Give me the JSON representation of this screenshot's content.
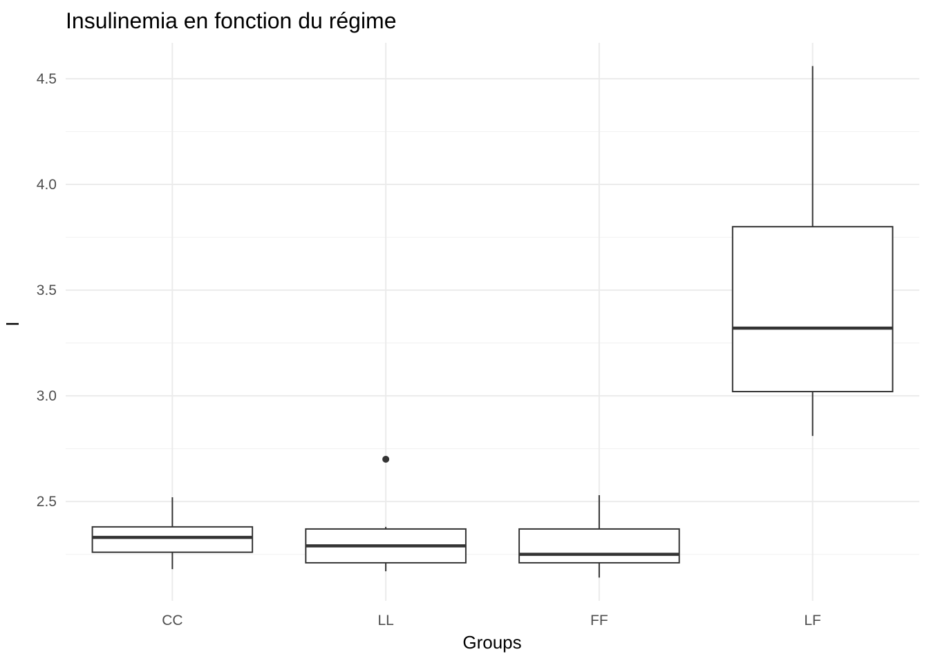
{
  "chart_data": {
    "type": "boxplot",
    "title": "Insulinemia en fonction du régime",
    "xlabel": "Groups",
    "ylabel": "I",
    "categories": [
      "CC",
      "LL",
      "FF",
      "LF"
    ],
    "ylim": [
      2.03,
      4.67
    ],
    "yticks": [
      2.5,
      3.0,
      3.5,
      4.0,
      4.5
    ],
    "ytick_labels": [
      "2.5",
      "3.0",
      "3.5",
      "4.0",
      "4.5"
    ],
    "grid": true,
    "legend": "none",
    "boxes": [
      {
        "category": "CC",
        "whisker_low": 2.18,
        "q1": 2.26,
        "median": 2.33,
        "q3": 2.38,
        "whisker_high": 2.52,
        "outliers": []
      },
      {
        "category": "LL",
        "whisker_low": 2.17,
        "q1": 2.21,
        "median": 2.29,
        "q3": 2.37,
        "whisker_high": 2.38,
        "outliers": [
          2.7
        ]
      },
      {
        "category": "FF",
        "whisker_low": 2.14,
        "q1": 2.21,
        "median": 2.25,
        "q3": 2.37,
        "whisker_high": 2.53,
        "outliers": []
      },
      {
        "category": "LF",
        "whisker_low": 2.81,
        "q1": 3.02,
        "median": 3.32,
        "q3": 3.8,
        "whisker_high": 4.56,
        "outliers": []
      }
    ]
  }
}
